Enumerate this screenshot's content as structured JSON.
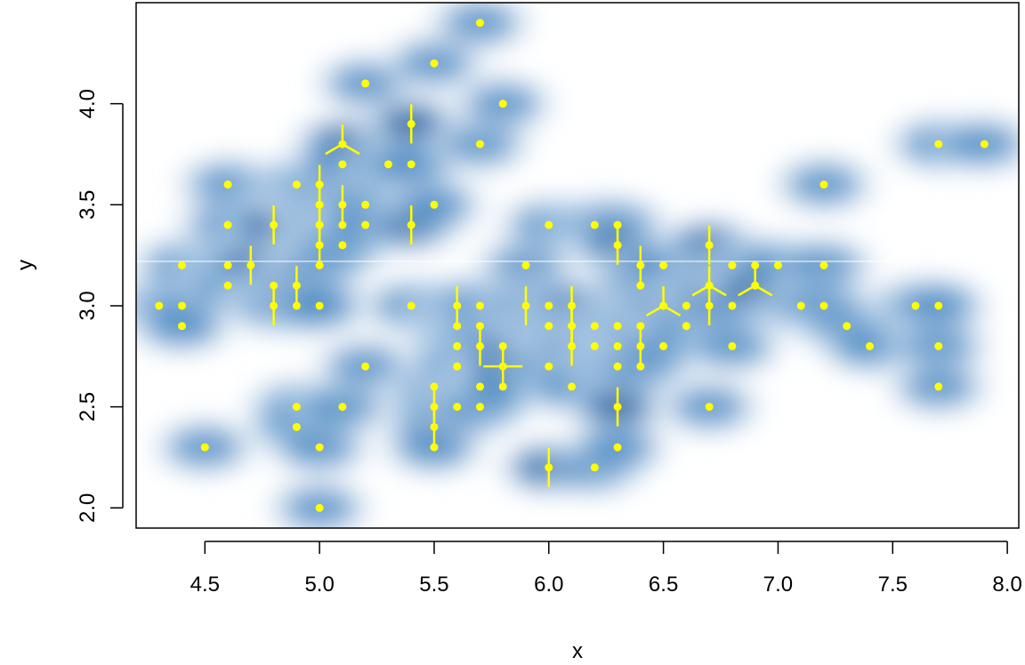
{
  "chart_data": {
    "type": "scatter",
    "subtype": "smoothScatter with sunflower plot overlay",
    "title": "",
    "xlabel": "x",
    "ylabel": "y",
    "xlim": [
      4.2,
      8.05
    ],
    "ylim": [
      1.9,
      4.5
    ],
    "x_ticks": [
      4.5,
      5.0,
      5.5,
      6.0,
      6.5,
      7.0,
      7.5,
      8.0
    ],
    "x_tick_labels": [
      "4.5",
      "5.0",
      "5.5",
      "6.0",
      "6.5",
      "7.0",
      "7.5",
      "8.0"
    ],
    "y_ticks": [
      2.0,
      2.5,
      3.0,
      3.5,
      4.0
    ],
    "y_tick_labels": [
      "2.0",
      "2.5",
      "3.0",
      "3.5",
      "4.0"
    ],
    "grid": false,
    "legend": "none",
    "colors": {
      "density_high": "#08306b",
      "density_mid": "#2171b5",
      "density_low": "#c6dbef",
      "points": "#ffff00",
      "reference_line": "#ffffff"
    },
    "reference_line_y": 3.22,
    "points": [
      {
        "x": 4.3,
        "y": 3.0,
        "n": 1
      },
      {
        "x": 4.4,
        "y": 3.2,
        "n": 1
      },
      {
        "x": 4.4,
        "y": 3.0,
        "n": 1
      },
      {
        "x": 4.4,
        "y": 2.9,
        "n": 1
      },
      {
        "x": 4.5,
        "y": 2.3,
        "n": 1
      },
      {
        "x": 4.6,
        "y": 3.6,
        "n": 1
      },
      {
        "x": 4.6,
        "y": 3.4,
        "n": 1
      },
      {
        "x": 4.6,
        "y": 3.2,
        "n": 1
      },
      {
        "x": 4.6,
        "y": 3.1,
        "n": 1
      },
      {
        "x": 4.7,
        "y": 3.2,
        "n": 2
      },
      {
        "x": 4.8,
        "y": 3.4,
        "n": 2
      },
      {
        "x": 4.8,
        "y": 3.1,
        "n": 1
      },
      {
        "x": 4.8,
        "y": 3.0,
        "n": 2
      },
      {
        "x": 4.9,
        "y": 3.6,
        "n": 1
      },
      {
        "x": 4.9,
        "y": 3.1,
        "n": 2
      },
      {
        "x": 4.9,
        "y": 3.0,
        "n": 1
      },
      {
        "x": 4.9,
        "y": 2.5,
        "n": 1
      },
      {
        "x": 4.9,
        "y": 2.4,
        "n": 1
      },
      {
        "x": 5.0,
        "y": 3.6,
        "n": 2
      },
      {
        "x": 5.0,
        "y": 3.5,
        "n": 2
      },
      {
        "x": 5.0,
        "y": 3.4,
        "n": 2
      },
      {
        "x": 5.0,
        "y": 3.3,
        "n": 2
      },
      {
        "x": 5.0,
        "y": 3.2,
        "n": 1
      },
      {
        "x": 5.0,
        "y": 3.0,
        "n": 1
      },
      {
        "x": 5.0,
        "y": 2.3,
        "n": 1
      },
      {
        "x": 5.0,
        "y": 2.0,
        "n": 1
      },
      {
        "x": 5.1,
        "y": 3.8,
        "n": 3
      },
      {
        "x": 5.1,
        "y": 3.7,
        "n": 1
      },
      {
        "x": 5.1,
        "y": 3.5,
        "n": 2
      },
      {
        "x": 5.1,
        "y": 3.4,
        "n": 1
      },
      {
        "x": 5.1,
        "y": 3.3,
        "n": 1
      },
      {
        "x": 5.1,
        "y": 2.5,
        "n": 1
      },
      {
        "x": 5.2,
        "y": 4.1,
        "n": 1
      },
      {
        "x": 5.2,
        "y": 3.5,
        "n": 1
      },
      {
        "x": 5.2,
        "y": 3.4,
        "n": 1
      },
      {
        "x": 5.2,
        "y": 2.7,
        "n": 1
      },
      {
        "x": 5.3,
        "y": 3.7,
        "n": 1
      },
      {
        "x": 5.4,
        "y": 3.9,
        "n": 2
      },
      {
        "x": 5.4,
        "y": 3.7,
        "n": 1
      },
      {
        "x": 5.4,
        "y": 3.4,
        "n": 2
      },
      {
        "x": 5.4,
        "y": 3.0,
        "n": 1
      },
      {
        "x": 5.5,
        "y": 4.2,
        "n": 1
      },
      {
        "x": 5.5,
        "y": 3.5,
        "n": 1
      },
      {
        "x": 5.5,
        "y": 2.6,
        "n": 1
      },
      {
        "x": 5.5,
        "y": 2.5,
        "n": 2
      },
      {
        "x": 5.5,
        "y": 2.4,
        "n": 2
      },
      {
        "x": 5.5,
        "y": 2.3,
        "n": 1
      },
      {
        "x": 5.6,
        "y": 3.0,
        "n": 2
      },
      {
        "x": 5.6,
        "y": 2.9,
        "n": 1
      },
      {
        "x": 5.6,
        "y": 2.8,
        "n": 1
      },
      {
        "x": 5.6,
        "y": 2.7,
        "n": 1
      },
      {
        "x": 5.6,
        "y": 2.5,
        "n": 1
      },
      {
        "x": 5.7,
        "y": 4.4,
        "n": 1
      },
      {
        "x": 5.7,
        "y": 3.8,
        "n": 1
      },
      {
        "x": 5.7,
        "y": 3.0,
        "n": 1
      },
      {
        "x": 5.7,
        "y": 2.9,
        "n": 1
      },
      {
        "x": 5.7,
        "y": 2.8,
        "n": 2
      },
      {
        "x": 5.7,
        "y": 2.6,
        "n": 1
      },
      {
        "x": 5.7,
        "y": 2.5,
        "n": 1
      },
      {
        "x": 5.8,
        "y": 4.0,
        "n": 1
      },
      {
        "x": 5.8,
        "y": 2.8,
        "n": 1
      },
      {
        "x": 5.8,
        "y": 2.7,
        "n": 4
      },
      {
        "x": 5.8,
        "y": 2.6,
        "n": 1
      },
      {
        "x": 5.9,
        "y": 3.2,
        "n": 1
      },
      {
        "x": 5.9,
        "y": 3.0,
        "n": 2
      },
      {
        "x": 6.0,
        "y": 3.4,
        "n": 1
      },
      {
        "x": 6.0,
        "y": 3.0,
        "n": 1
      },
      {
        "x": 6.0,
        "y": 2.9,
        "n": 1
      },
      {
        "x": 6.0,
        "y": 2.7,
        "n": 1
      },
      {
        "x": 6.0,
        "y": 2.2,
        "n": 2
      },
      {
        "x": 6.1,
        "y": 3.0,
        "n": 2
      },
      {
        "x": 6.1,
        "y": 2.9,
        "n": 2
      },
      {
        "x": 6.1,
        "y": 2.8,
        "n": 2
      },
      {
        "x": 6.1,
        "y": 2.6,
        "n": 1
      },
      {
        "x": 6.2,
        "y": 3.4,
        "n": 1
      },
      {
        "x": 6.2,
        "y": 2.9,
        "n": 1
      },
      {
        "x": 6.2,
        "y": 2.8,
        "n": 1
      },
      {
        "x": 6.2,
        "y": 2.2,
        "n": 1
      },
      {
        "x": 6.3,
        "y": 3.4,
        "n": 1
      },
      {
        "x": 6.3,
        "y": 3.3,
        "n": 2
      },
      {
        "x": 6.3,
        "y": 2.9,
        "n": 1
      },
      {
        "x": 6.3,
        "y": 2.8,
        "n": 1
      },
      {
        "x": 6.3,
        "y": 2.7,
        "n": 1
      },
      {
        "x": 6.3,
        "y": 2.5,
        "n": 2
      },
      {
        "x": 6.3,
        "y": 2.3,
        "n": 1
      },
      {
        "x": 6.4,
        "y": 3.2,
        "n": 2
      },
      {
        "x": 6.4,
        "y": 3.1,
        "n": 1
      },
      {
        "x": 6.4,
        "y": 2.9,
        "n": 1
      },
      {
        "x": 6.4,
        "y": 2.8,
        "n": 2
      },
      {
        "x": 6.4,
        "y": 2.7,
        "n": 1
      },
      {
        "x": 6.5,
        "y": 3.2,
        "n": 1
      },
      {
        "x": 6.5,
        "y": 3.0,
        "n": 3
      },
      {
        "x": 6.5,
        "y": 2.8,
        "n": 1
      },
      {
        "x": 6.6,
        "y": 3.0,
        "n": 1
      },
      {
        "x": 6.6,
        "y": 2.9,
        "n": 1
      },
      {
        "x": 6.7,
        "y": 3.3,
        "n": 2
      },
      {
        "x": 6.7,
        "y": 3.1,
        "n": 3
      },
      {
        "x": 6.7,
        "y": 3.0,
        "n": 2
      },
      {
        "x": 6.7,
        "y": 2.5,
        "n": 1
      },
      {
        "x": 6.8,
        "y": 3.2,
        "n": 1
      },
      {
        "x": 6.8,
        "y": 3.0,
        "n": 1
      },
      {
        "x": 6.8,
        "y": 2.8,
        "n": 1
      },
      {
        "x": 6.9,
        "y": 3.2,
        "n": 1
      },
      {
        "x": 6.9,
        "y": 3.1,
        "n": 3
      },
      {
        "x": 7.0,
        "y": 3.2,
        "n": 1
      },
      {
        "x": 7.1,
        "y": 3.0,
        "n": 1
      },
      {
        "x": 7.2,
        "y": 3.6,
        "n": 1
      },
      {
        "x": 7.2,
        "y": 3.2,
        "n": 1
      },
      {
        "x": 7.2,
        "y": 3.0,
        "n": 1
      },
      {
        "x": 7.3,
        "y": 2.9,
        "n": 1
      },
      {
        "x": 7.4,
        "y": 2.8,
        "n": 1
      },
      {
        "x": 7.6,
        "y": 3.0,
        "n": 1
      },
      {
        "x": 7.7,
        "y": 3.8,
        "n": 1
      },
      {
        "x": 7.7,
        "y": 3.0,
        "n": 1
      },
      {
        "x": 7.7,
        "y": 2.8,
        "n": 1
      },
      {
        "x": 7.7,
        "y": 2.6,
        "n": 1
      },
      {
        "x": 7.9,
        "y": 3.8,
        "n": 1
      }
    ]
  }
}
